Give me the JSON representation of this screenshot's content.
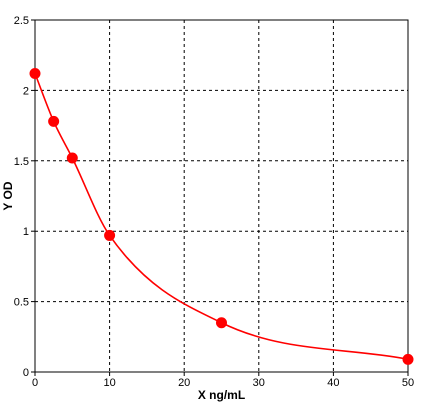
{
  "chart_data": {
    "type": "scatter",
    "title": "",
    "xlabel": "X ng/mL",
    "ylabel": "Y OD",
    "xlim": [
      0,
      50
    ],
    "ylim": [
      0,
      2.5
    ],
    "x_ticks": [
      0,
      10,
      20,
      30,
      40,
      50
    ],
    "x_tick_labels": [
      "0",
      "10",
      "20",
      "30",
      "40",
      "50"
    ],
    "y_ticks": [
      0,
      0.5,
      1,
      1.5,
      2,
      2.5
    ],
    "y_tick_labels": [
      "0",
      "0.5",
      "1",
      "1.5",
      "2",
      "2.5"
    ],
    "grid": true,
    "grid_style": "dashed",
    "legend": "none",
    "series": [
      {
        "points": [
          {
            "x": 0,
            "y": 2.12
          },
          {
            "x": 2.5,
            "y": 1.78
          },
          {
            "x": 5,
            "y": 1.52
          },
          {
            "x": 10,
            "y": 0.97
          },
          {
            "x": 25,
            "y": 0.35
          },
          {
            "x": 50,
            "y": 0.09
          }
        ],
        "fitted_curve": true,
        "color": "#ff0000"
      }
    ]
  },
  "colors": {
    "series": "#ff0000",
    "grid": "#000000",
    "axis": "#000000"
  }
}
